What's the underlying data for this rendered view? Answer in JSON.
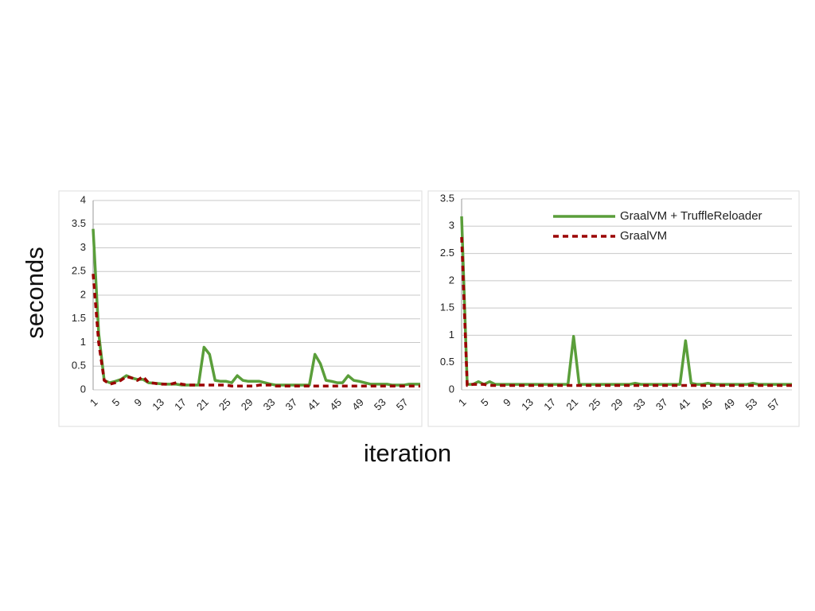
{
  "axis_labels": {
    "y": "seconds",
    "x": "iteration"
  },
  "chart_data": [
    {
      "type": "line",
      "legend": "none",
      "grid": true,
      "categories": [
        "1",
        null,
        null,
        null,
        "5",
        null,
        null,
        null,
        "9",
        null,
        null,
        null,
        "13",
        null,
        null,
        null,
        "17",
        null,
        null,
        null,
        "21",
        null,
        null,
        null,
        "25",
        null,
        null,
        null,
        "29",
        null,
        null,
        null,
        "33",
        null,
        null,
        null,
        "37",
        null,
        null,
        null,
        "41",
        null,
        null,
        null,
        "45",
        null,
        null,
        null,
        "49",
        null,
        null,
        null,
        "53",
        null,
        null,
        null,
        "57",
        null,
        null,
        null
      ],
      "ylim": [
        0,
        4
      ],
      "yticks": [
        0,
        0.5,
        1,
        1.5,
        2,
        2.5,
        3,
        3.5,
        4
      ],
      "series": [
        {
          "name": "GraalVM + TruffleReloader",
          "color": "#5a9e3a",
          "style": "solid",
          "values": [
            3.4,
            1.2,
            0.2,
            0.15,
            0.18,
            0.22,
            0.3,
            0.25,
            0.22,
            0.22,
            0.15,
            0.14,
            0.13,
            0.12,
            0.12,
            0.12,
            0.1,
            0.1,
            0.1,
            0.1,
            0.9,
            0.75,
            0.2,
            0.18,
            0.18,
            0.15,
            0.3,
            0.2,
            0.18,
            0.18,
            0.18,
            0.15,
            0.12,
            0.1,
            0.1,
            0.1,
            0.1,
            0.1,
            0.1,
            0.1,
            0.75,
            0.55,
            0.2,
            0.18,
            0.15,
            0.15,
            0.3,
            0.2,
            0.18,
            0.15,
            0.12,
            0.12,
            0.12,
            0.12,
            0.1,
            0.1,
            0.1,
            0.12,
            0.12,
            0.12
          ]
        },
        {
          "name": "GraalVM",
          "color": "#9b0000",
          "style": "dashed",
          "values": [
            2.45,
            1.0,
            0.2,
            0.12,
            0.15,
            0.2,
            0.28,
            0.25,
            0.2,
            0.28,
            0.15,
            0.14,
            0.12,
            0.12,
            0.12,
            0.15,
            0.12,
            0.1,
            0.1,
            0.1,
            0.1,
            0.1,
            0.1,
            0.1,
            0.1,
            0.08,
            0.08,
            0.08,
            0.08,
            0.08,
            0.1,
            0.1,
            0.1,
            0.08,
            0.08,
            0.08,
            0.08,
            0.08,
            0.08,
            0.08,
            0.08,
            0.08,
            0.08,
            0.08,
            0.08,
            0.08,
            0.08,
            0.08,
            0.08,
            0.08,
            0.08,
            0.08,
            0.08,
            0.08,
            0.08,
            0.08,
            0.08,
            0.08,
            0.08,
            0.08
          ]
        }
      ]
    },
    {
      "type": "line",
      "legend": "top-right",
      "grid": true,
      "categories": [
        "1",
        null,
        null,
        null,
        "5",
        null,
        null,
        null,
        "9",
        null,
        null,
        null,
        "13",
        null,
        null,
        null,
        "17",
        null,
        null,
        null,
        "21",
        null,
        null,
        null,
        "25",
        null,
        null,
        null,
        "29",
        null,
        null,
        null,
        "33",
        null,
        null,
        null,
        "37",
        null,
        null,
        null,
        "41",
        null,
        null,
        null,
        "45",
        null,
        null,
        null,
        "49",
        null,
        null,
        null,
        "53",
        null,
        null,
        null,
        "57",
        null,
        null,
        null
      ],
      "ylim": [
        0,
        3.5
      ],
      "yticks": [
        0,
        0.5,
        1,
        1.5,
        2,
        2.5,
        3,
        3.5
      ],
      "series": [
        {
          "name": "GraalVM + TruffleReloader",
          "color": "#5a9e3a",
          "style": "solid",
          "values": [
            3.18,
            0.1,
            0.1,
            0.15,
            0.1,
            0.15,
            0.1,
            0.1,
            0.1,
            0.1,
            0.1,
            0.1,
            0.1,
            0.1,
            0.1,
            0.1,
            0.1,
            0.1,
            0.1,
            0.1,
            0.98,
            0.1,
            0.1,
            0.1,
            0.1,
            0.1,
            0.1,
            0.1,
            0.1,
            0.1,
            0.1,
            0.12,
            0.1,
            0.1,
            0.1,
            0.1,
            0.1,
            0.1,
            0.1,
            0.1,
            0.9,
            0.12,
            0.1,
            0.1,
            0.12,
            0.1,
            0.1,
            0.1,
            0.1,
            0.1,
            0.1,
            0.1,
            0.12,
            0.1,
            0.1,
            0.1,
            0.1,
            0.1,
            0.1,
            0.1
          ]
        },
        {
          "name": "GraalVM",
          "color": "#9b0000",
          "style": "dashed",
          "values": [
            2.8,
            0.08,
            0.1,
            0.1,
            0.1,
            0.08,
            0.08,
            0.08,
            0.08,
            0.08,
            0.08,
            0.08,
            0.08,
            0.08,
            0.08,
            0.08,
            0.08,
            0.08,
            0.08,
            0.08,
            0.08,
            0.08,
            0.08,
            0.08,
            0.08,
            0.08,
            0.08,
            0.08,
            0.08,
            0.08,
            0.08,
            0.08,
            0.08,
            0.08,
            0.08,
            0.08,
            0.08,
            0.08,
            0.08,
            0.08,
            0.08,
            0.08,
            0.08,
            0.08,
            0.08,
            0.08,
            0.08,
            0.08,
            0.08,
            0.08,
            0.08,
            0.08,
            0.08,
            0.08,
            0.08,
            0.08,
            0.08,
            0.08,
            0.08,
            0.08
          ]
        }
      ]
    }
  ]
}
